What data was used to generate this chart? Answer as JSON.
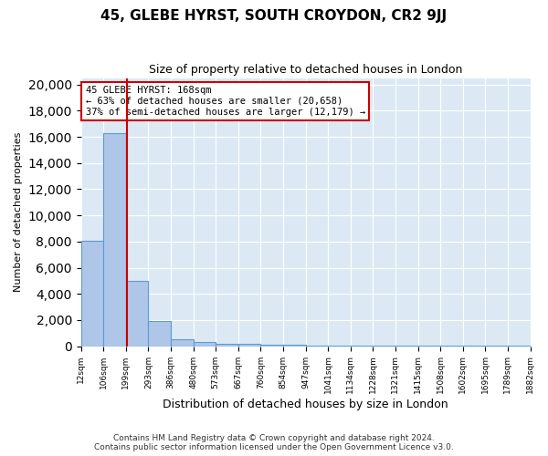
{
  "title": "45, GLEBE HYRST, SOUTH CROYDON, CR2 9JJ",
  "subtitle": "Size of property relative to detached houses in London",
  "xlabel": "Distribution of detached houses by size in London",
  "ylabel": "Number of detached properties",
  "annotation_line1": "45 GLEBE HYRST: 168sqm",
  "annotation_line2": "← 63% of detached houses are smaller (20,658)",
  "annotation_line3": "37% of semi-detached houses are larger (12,179) →",
  "footer_line1": "Contains HM Land Registry data © Crown copyright and database right 2024.",
  "footer_line2": "Contains public sector information licensed under the Open Government Licence v3.0.",
  "bin_labels": [
    "12sqm",
    "106sqm",
    "199sqm",
    "293sqm",
    "386sqm",
    "480sqm",
    "573sqm",
    "667sqm",
    "760sqm",
    "854sqm",
    "947sqm",
    "1041sqm",
    "1134sqm",
    "1228sqm",
    "1321sqm",
    "1415sqm",
    "1508sqm",
    "1602sqm",
    "1695sqm",
    "1789sqm",
    "1882sqm"
  ],
  "bar_values": [
    8050,
    16300,
    5000,
    1900,
    500,
    300,
    200,
    150,
    100,
    80,
    60,
    50,
    40,
    35,
    30,
    25,
    20,
    15,
    12,
    10
  ],
  "bar_color": "#aec6e8",
  "bar_edge_color": "#5b9bd5",
  "vline_color": "#cc0000",
  "annotation_box_color": "#cc0000",
  "background_color": "#dce9f5",
  "ylim": [
    0,
    20500
  ],
  "yticks": [
    0,
    2000,
    4000,
    6000,
    8000,
    10000,
    12000,
    14000,
    16000,
    18000,
    20000
  ],
  "vline_x_bin": 1.55
}
